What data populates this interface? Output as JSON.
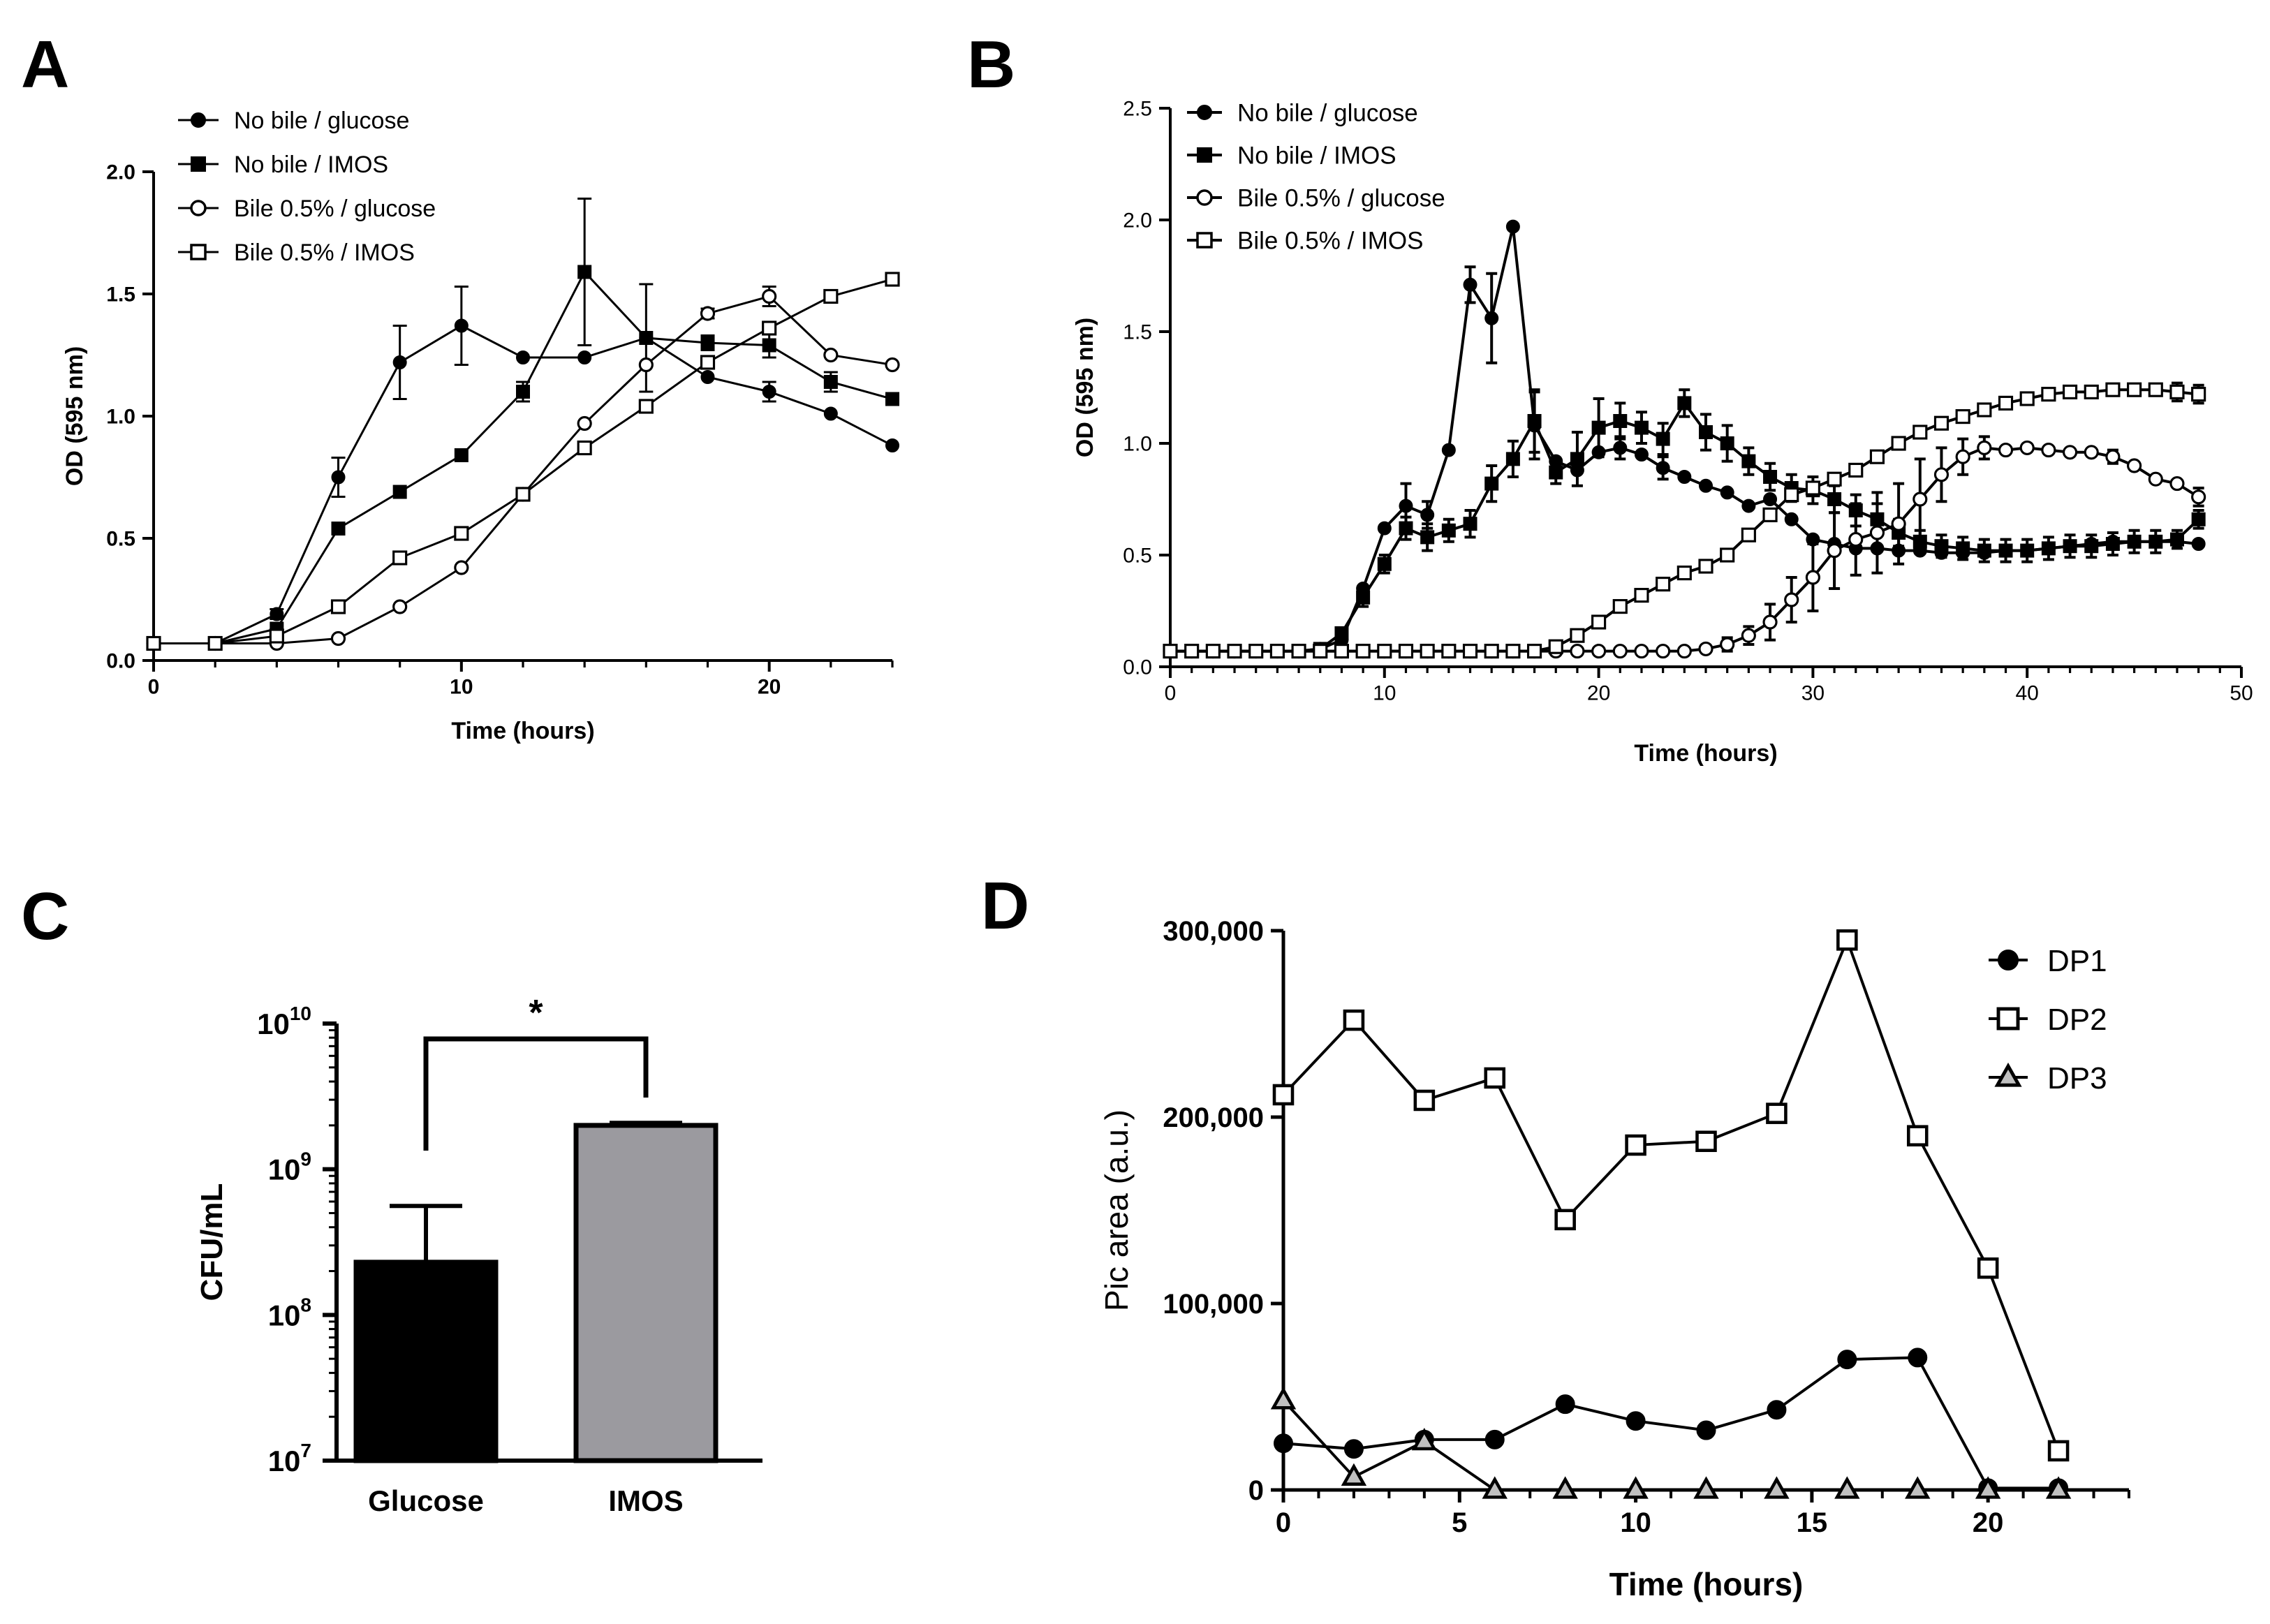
{
  "panels": {
    "A": {
      "letter": "A"
    },
    "B": {
      "letter": "B"
    },
    "C": {
      "letter": "C"
    },
    "D": {
      "letter": "D"
    }
  },
  "chart_data": [
    {
      "id": "A",
      "type": "line",
      "title": "",
      "xlabel": "Time (hours)",
      "ylabel": "OD (595 nm)",
      "xlim": [
        0,
        24
      ],
      "ylim": [
        0,
        2.0
      ],
      "xticks": [
        0,
        10,
        20
      ],
      "yticks": [
        0.0,
        0.5,
        1.0,
        1.5,
        2.0
      ],
      "ytick_labels": [
        "0.0",
        "0.5",
        "1.0",
        "1.5",
        "2.0"
      ],
      "grid": false,
      "legend_position": "top-left",
      "x": [
        0,
        2,
        4,
        6,
        8,
        10,
        12,
        14,
        16,
        18,
        20,
        22,
        24
      ],
      "series": [
        {
          "name": "No bile / glucose",
          "marker": "circle-filled",
          "values": [
            0.07,
            0.07,
            0.19,
            0.75,
            1.22,
            1.37,
            1.24,
            1.24,
            1.32,
            1.16,
            1.1,
            1.01,
            0.88
          ],
          "errors": [
            0,
            0,
            0.02,
            0.08,
            0.15,
            0.16,
            0,
            0,
            0,
            0,
            0.04,
            0,
            0
          ]
        },
        {
          "name": "No bile / IMOS",
          "marker": "square-filled",
          "values": [
            0.07,
            0.07,
            0.13,
            0.54,
            0.69,
            0.84,
            1.1,
            1.59,
            1.32,
            1.3,
            1.29,
            1.14,
            1.07
          ],
          "errors": [
            0,
            0,
            0,
            0,
            0,
            0,
            0.04,
            0.3,
            0.22,
            0.03,
            0.05,
            0.04,
            0
          ]
        },
        {
          "name": "Bile 0.5% / glucose",
          "marker": "circle-open",
          "values": [
            0.07,
            0.07,
            0.07,
            0.09,
            0.22,
            0.38,
            0.68,
            0.97,
            1.21,
            1.42,
            1.49,
            1.25,
            1.21
          ],
          "errors": [
            0,
            0,
            0,
            0,
            0,
            0,
            0,
            0,
            0,
            0.02,
            0.04,
            0,
            0
          ]
        },
        {
          "name": "Bile 0.5% / IMOS",
          "marker": "square-open",
          "values": [
            0.07,
            0.07,
            0.1,
            0.22,
            0.42,
            0.52,
            0.68,
            0.87,
            1.04,
            1.22,
            1.36,
            1.49,
            1.56
          ],
          "errors": [
            0,
            0,
            0,
            0,
            0,
            0,
            0,
            0,
            0,
            0,
            0,
            0,
            0
          ]
        }
      ]
    },
    {
      "id": "B",
      "type": "line",
      "title": "",
      "xlabel": "Time (hours)",
      "ylabel": "OD (595 nm)",
      "xlim": [
        0,
        50
      ],
      "ylim": [
        0,
        2.5
      ],
      "xticks": [
        0,
        10,
        20,
        30,
        40,
        50
      ],
      "yticks": [
        0.0,
        0.5,
        1.0,
        1.5,
        2.0,
        2.5
      ],
      "ytick_labels": [
        "0.0",
        "0.5",
        "1.0",
        "1.5",
        "2.0",
        "2.5"
      ],
      "grid": false,
      "legend_position": "top-left",
      "x": [
        0,
        1,
        2,
        3,
        4,
        5,
        6,
        7,
        8,
        9,
        10,
        11,
        12,
        13,
        14,
        15,
        16,
        17,
        18,
        19,
        20,
        21,
        22,
        23,
        24,
        25,
        26,
        27,
        28,
        29,
        30,
        31,
        32,
        33,
        34,
        35,
        36,
        37,
        38,
        39,
        40,
        41,
        42,
        43,
        44,
        45,
        46,
        47,
        48
      ],
      "series": [
        {
          "name": "No bile / glucose",
          "marker": "circle-filled",
          "values": [
            0.07,
            0.07,
            0.07,
            0.07,
            0.07,
            0.07,
            0.07,
            0.08,
            0.12,
            0.35,
            0.62,
            0.72,
            0.68,
            0.97,
            1.71,
            1.56,
            1.97,
            1.08,
            0.92,
            0.88,
            0.96,
            0.98,
            0.95,
            0.89,
            0.85,
            0.81,
            0.78,
            0.72,
            0.75,
            0.66,
            0.57,
            0.55,
            0.53,
            0.53,
            0.52,
            0.52,
            0.51,
            0.51,
            0.51,
            0.52,
            0.52,
            0.53,
            0.54,
            0.55,
            0.56,
            0.56,
            0.56,
            0.56,
            0.55
          ],
          "errors": [
            0,
            0,
            0,
            0,
            0,
            0,
            0,
            0,
            0,
            0,
            0,
            0.1,
            0.06,
            0,
            0.08,
            0.2,
            0,
            0.15,
            0,
            0,
            0,
            0.05,
            0,
            0.05,
            0,
            0,
            0,
            0,
            0,
            0,
            0,
            0,
            0,
            0,
            0,
            0,
            0,
            0,
            0,
            0,
            0,
            0,
            0,
            0,
            0,
            0,
            0,
            0,
            0
          ]
        },
        {
          "name": "No bile / IMOS",
          "marker": "square-filled",
          "values": [
            0.07,
            0.07,
            0.07,
            0.07,
            0.07,
            0.07,
            0.07,
            0.08,
            0.15,
            0.31,
            0.46,
            0.62,
            0.58,
            0.61,
            0.64,
            0.82,
            0.93,
            1.1,
            0.87,
            0.93,
            1.07,
            1.1,
            1.07,
            1.02,
            1.18,
            1.05,
            1.0,
            0.92,
            0.85,
            0.8,
            0.79,
            0.75,
            0.7,
            0.66,
            0.6,
            0.56,
            0.54,
            0.53,
            0.52,
            0.52,
            0.52,
            0.53,
            0.54,
            0.54,
            0.55,
            0.56,
            0.56,
            0.57,
            0.66
          ],
          "errors": [
            0,
            0,
            0,
            0,
            0,
            0,
            0,
            0,
            0,
            0.04,
            0.04,
            0.05,
            0.06,
            0.05,
            0.06,
            0.08,
            0.08,
            0.14,
            0.05,
            0.12,
            0.13,
            0.08,
            0.07,
            0.07,
            0.06,
            0.08,
            0.08,
            0.06,
            0.06,
            0.06,
            0.06,
            0.06,
            0.07,
            0.07,
            0.06,
            0.05,
            0.05,
            0.05,
            0.05,
            0.05,
            0.05,
            0.05,
            0.05,
            0.05,
            0.05,
            0.05,
            0.05,
            0.04,
            0.04
          ]
        },
        {
          "name": "Bile 0.5% / glucose",
          "marker": "circle-open",
          "values": [
            0.07,
            0.07,
            0.07,
            0.07,
            0.07,
            0.07,
            0.07,
            0.07,
            0.07,
            0.07,
            0.07,
            0.07,
            0.07,
            0.07,
            0.07,
            0.07,
            0.07,
            0.07,
            0.07,
            0.07,
            0.07,
            0.07,
            0.07,
            0.07,
            0.07,
            0.08,
            0.1,
            0.14,
            0.2,
            0.3,
            0.4,
            0.52,
            0.57,
            0.6,
            0.64,
            0.75,
            0.86,
            0.94,
            0.98,
            0.97,
            0.98,
            0.97,
            0.96,
            0.96,
            0.94,
            0.9,
            0.84,
            0.82,
            0.76
          ],
          "errors": [
            0,
            0,
            0,
            0,
            0,
            0,
            0,
            0,
            0,
            0,
            0,
            0,
            0,
            0,
            0,
            0,
            0,
            0,
            0,
            0,
            0,
            0,
            0,
            0,
            0,
            0,
            0.03,
            0.04,
            0.08,
            0.1,
            0.15,
            0.17,
            0.16,
            0.18,
            0.18,
            0.18,
            0.12,
            0.08,
            0.05,
            0,
            0,
            0,
            0,
            0,
            0.03,
            0,
            0,
            0,
            0.04
          ]
        },
        {
          "name": "Bile 0.5% / IMOS",
          "marker": "square-open",
          "values": [
            0.07,
            0.07,
            0.07,
            0.07,
            0.07,
            0.07,
            0.07,
            0.07,
            0.07,
            0.07,
            0.07,
            0.07,
            0.07,
            0.07,
            0.07,
            0.07,
            0.07,
            0.07,
            0.09,
            0.14,
            0.2,
            0.27,
            0.32,
            0.37,
            0.42,
            0.45,
            0.5,
            0.59,
            0.68,
            0.77,
            0.8,
            0.84,
            0.88,
            0.94,
            1.0,
            1.05,
            1.09,
            1.12,
            1.15,
            1.18,
            1.2,
            1.22,
            1.23,
            1.23,
            1.24,
            1.24,
            1.24,
            1.23,
            1.22
          ],
          "errors": [
            0,
            0,
            0,
            0,
            0,
            0,
            0,
            0,
            0,
            0,
            0,
            0,
            0,
            0,
            0,
            0,
            0,
            0,
            0,
            0,
            0,
            0,
            0,
            0,
            0,
            0,
            0,
            0,
            0,
            0,
            0,
            0,
            0,
            0,
            0,
            0,
            0,
            0,
            0,
            0,
            0,
            0,
            0,
            0,
            0,
            0,
            0,
            0.04,
            0.04
          ]
        }
      ]
    },
    {
      "id": "C",
      "type": "bar",
      "title": "",
      "xlabel": "",
      "ylabel": "CFU/mL",
      "yscale": "log10",
      "ylim_exponent": [
        7,
        10
      ],
      "ytick_base": "10",
      "ytick_exponents": [
        "7",
        "8",
        "9",
        "10"
      ],
      "categories": [
        "Glucose",
        "IMOS"
      ],
      "values": [
        230000000,
        2000000000
      ],
      "errors": [
        330000000,
        80000000
      ],
      "colors": [
        "#000000",
        "#9b9a9f"
      ],
      "significance": "*"
    },
    {
      "id": "D",
      "type": "line",
      "title": "",
      "xlabel": "Time (hours)",
      "ylabel": "Pic area (a.u.)",
      "xlim": [
        0,
        24
      ],
      "ylim": [
        0,
        300000
      ],
      "xticks": [
        0,
        5,
        10,
        15,
        20
      ],
      "yticks": [
        0,
        100000,
        200000,
        300000
      ],
      "ytick_labels": [
        "0",
        "100,000",
        "200,000",
        "300,000"
      ],
      "grid": false,
      "legend_position": "top-right",
      "x": [
        0,
        2,
        4,
        6,
        8,
        10,
        12,
        14,
        16,
        18,
        20,
        22
      ],
      "series": [
        {
          "name": "DP1",
          "marker": "circle-filled",
          "values": [
            25000,
            22000,
            27000,
            27000,
            46000,
            37000,
            32000,
            43000,
            70000,
            71000,
            1000,
            1000
          ]
        },
        {
          "name": "DP2",
          "marker": "square-open",
          "values": [
            212000,
            252000,
            209000,
            221000,
            145000,
            185000,
            187000,
            202000,
            295000,
            190000,
            119000,
            21000
          ]
        },
        {
          "name": "DP3",
          "marker": "triangle-gray",
          "values": [
            48000,
            7000,
            26000,
            0,
            0,
            0,
            0,
            0,
            0,
            0,
            0,
            0
          ]
        }
      ]
    }
  ]
}
